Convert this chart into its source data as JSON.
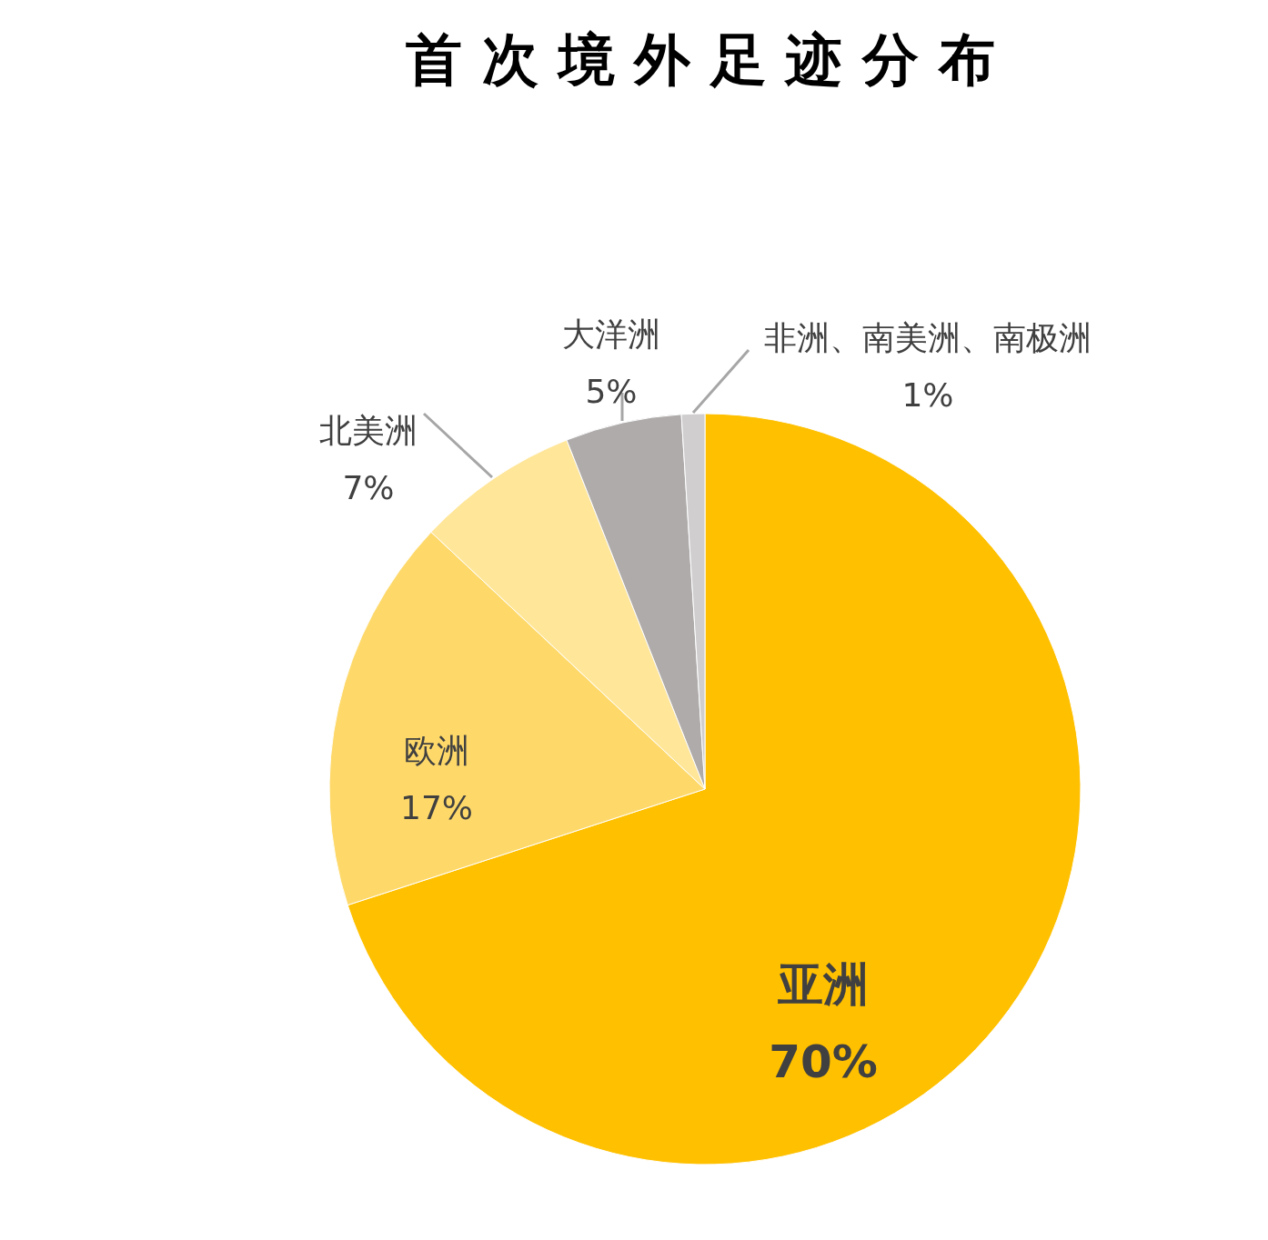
{
  "chart_data": {
    "type": "pie",
    "title": "首 次 境 外 足 迹 分 布",
    "categories": [
      "亚洲",
      "欧洲",
      "北美洲",
      "大洋洲",
      "非洲、南美洲、南极洲"
    ],
    "values": [
      70,
      17,
      7,
      5,
      1
    ],
    "value_labels": [
      "70%",
      "17%",
      "7%",
      "5%",
      "1%"
    ],
    "colors": [
      "#ffc000",
      "#fed96a",
      "#ffe699",
      "#afabab",
      "#d0cece"
    ]
  }
}
